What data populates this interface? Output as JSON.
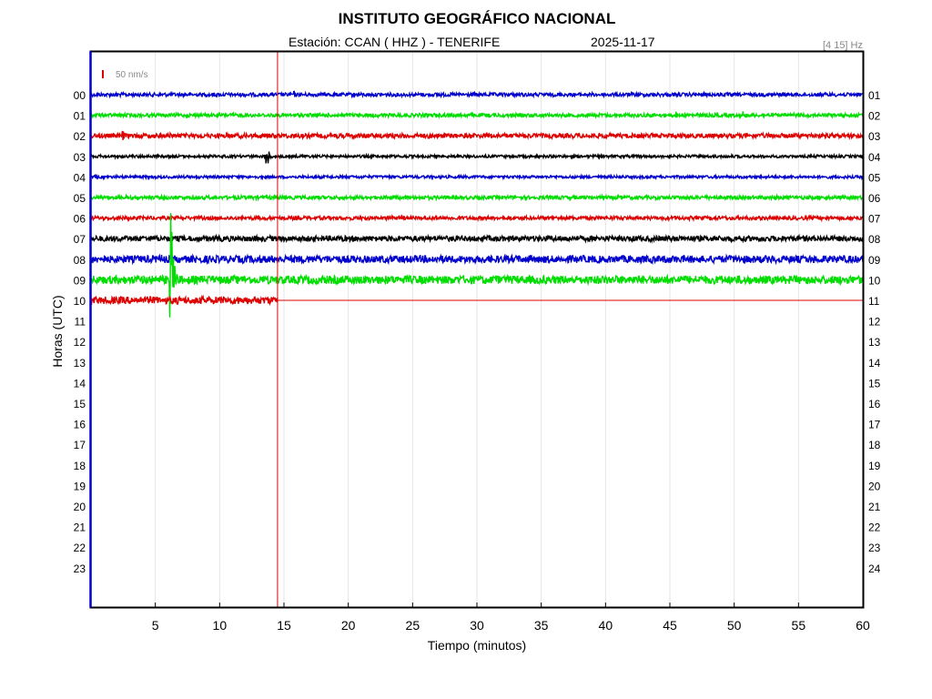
{
  "chart_data": {
    "type": "line",
    "title": "INSTITUTO GEOGRÁFICO NACIONAL",
    "subtitle_station": "Estación:  CCAN ( HHZ ) - TENERIFE",
    "subtitle_date": "2025-11-17",
    "filter_label": "[4 15] Hz",
    "scale_label": "50 nm/s",
    "xlabel": "Tiempo (minutos)",
    "ylabel": "Horas (UTC)",
    "xlim": [
      0,
      60
    ],
    "x_ticks": [
      "5",
      "10",
      "15",
      "20",
      "25",
      "30",
      "35",
      "40",
      "45",
      "50",
      "55",
      "60"
    ],
    "x_tick_values": [
      5,
      10,
      15,
      20,
      25,
      30,
      35,
      40,
      45,
      50,
      55,
      60
    ],
    "left_hour_labels": [
      "00",
      "01",
      "02",
      "03",
      "04",
      "05",
      "06",
      "07",
      "08",
      "09",
      "10",
      "11",
      "12",
      "13",
      "14",
      "15",
      "16",
      "17",
      "18",
      "19",
      "20",
      "21",
      "22",
      "23"
    ],
    "right_hour_labels": [
      "01",
      "02",
      "03",
      "04",
      "05",
      "06",
      "07",
      "08",
      "09",
      "10",
      "11",
      "12",
      "13",
      "14",
      "15",
      "16",
      "17",
      "18",
      "19",
      "20",
      "21",
      "22",
      "23",
      "24"
    ],
    "grid": "vertical",
    "current_time_minute": 14.5,
    "current_hour_index": 10,
    "trace_colors": [
      "#0000cc",
      "#00dd00",
      "#dd0000",
      "#000000"
    ],
    "series": [
      {
        "hour": "00",
        "noise": 2.0,
        "events": [
          {
            "t": 15.8,
            "amp": 4
          }
        ]
      },
      {
        "hour": "01",
        "noise": 2.0,
        "events": [
          {
            "t": 45.5,
            "amp": 4
          },
          {
            "t": 50.7,
            "amp": 5
          }
        ]
      },
      {
        "hour": "02",
        "noise": 2.5,
        "events": [
          {
            "t": 2.5,
            "amp": 6
          },
          {
            "t": 6.2,
            "amp": 4
          }
        ]
      },
      {
        "hour": "03",
        "noise": 1.5,
        "events": [
          {
            "t": 13.7,
            "amp": 12
          }
        ]
      },
      {
        "hour": "04",
        "noise": 1.5,
        "events": []
      },
      {
        "hour": "05",
        "noise": 2.0,
        "events": [
          {
            "t": 23.3,
            "amp": 3
          },
          {
            "t": 53.3,
            "amp": 3
          }
        ]
      },
      {
        "hour": "06",
        "noise": 2.0,
        "events": [
          {
            "t": 23.3,
            "amp": 4
          },
          {
            "t": 46.5,
            "amp": 3
          }
        ]
      },
      {
        "hour": "07",
        "noise": 3.0,
        "events": [
          {
            "t": 45.0,
            "amp": 4
          },
          {
            "t": 48.5,
            "amp": 4
          }
        ]
      },
      {
        "hour": "08",
        "noise": 4.0,
        "events": [
          {
            "t": 5.5,
            "amp": 6
          },
          {
            "t": 11.0,
            "amp": 5
          }
        ]
      },
      {
        "hour": "09",
        "noise": 4.5,
        "events": [
          {
            "t": 6.2,
            "amp": 80
          },
          {
            "t": 31.5,
            "amp": 6
          }
        ]
      },
      {
        "hour": "10",
        "noise": 4.0,
        "events": []
      }
    ]
  }
}
